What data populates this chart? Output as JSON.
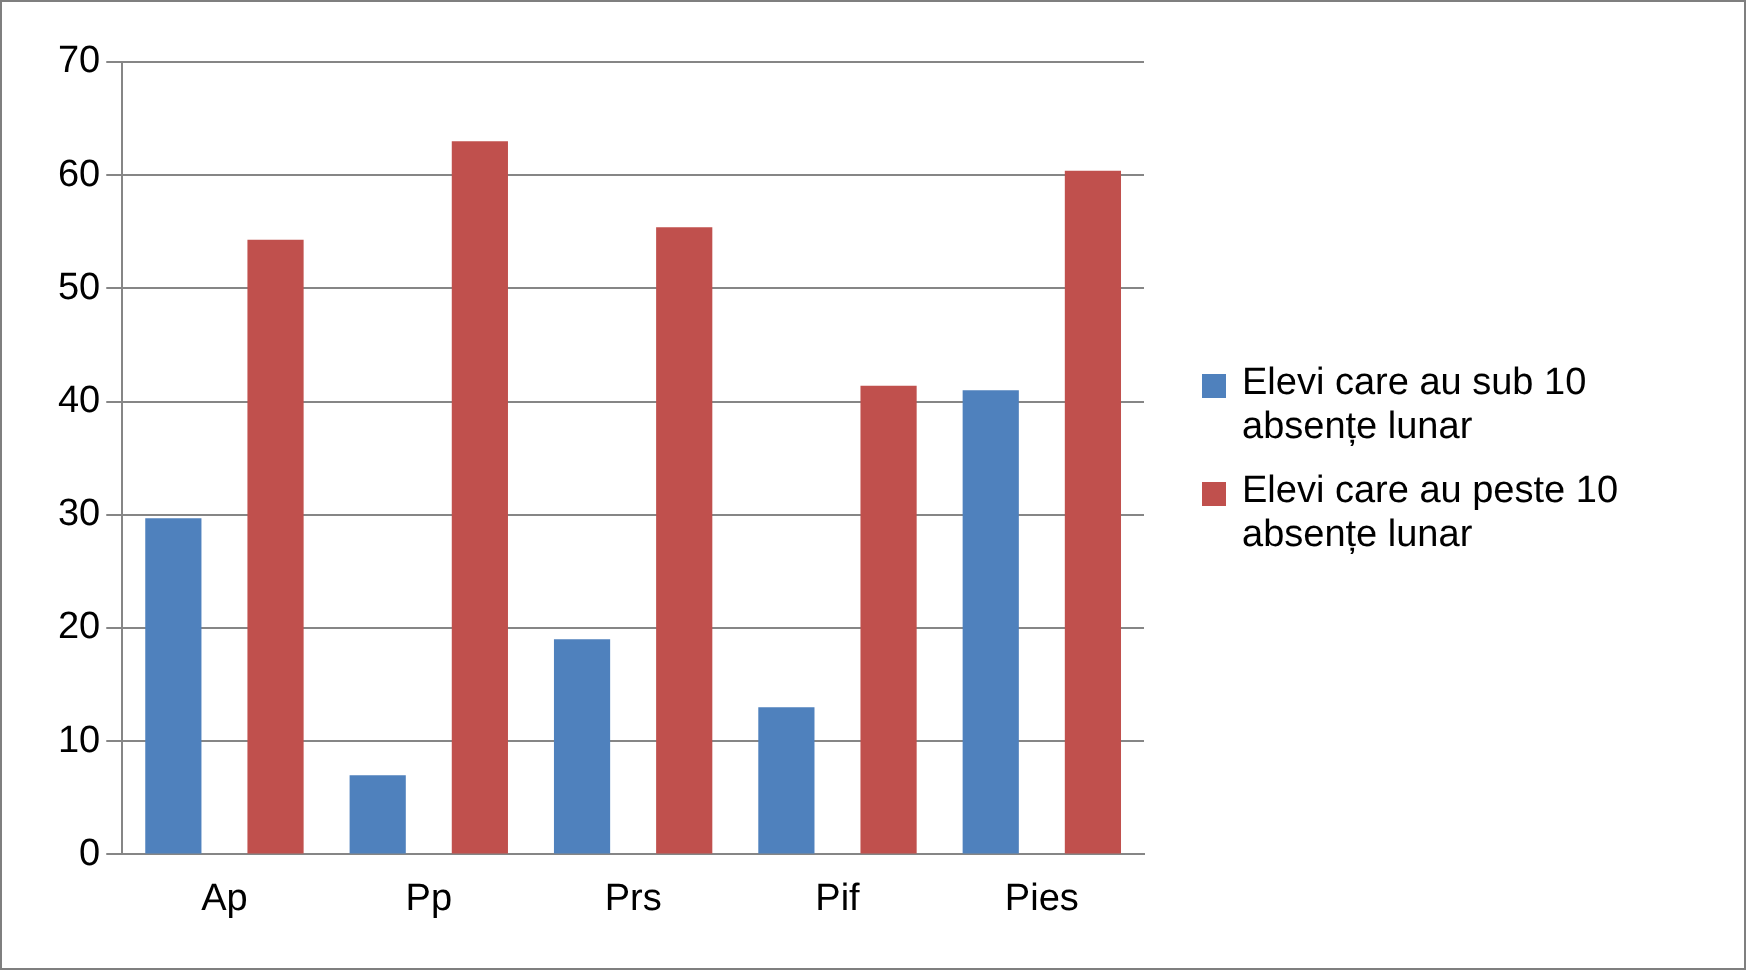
{
  "chart_data": {
    "type": "bar",
    "categories": [
      "Ap",
      "Pp",
      "Prs",
      "Pif",
      "Pies"
    ],
    "series": [
      {
        "name": "Elevi care au sub 10 absențe lunar",
        "color": "#4f81bd",
        "values": [
          29.7,
          7,
          19,
          13,
          41
        ]
      },
      {
        "name": "Elevi care au peste 10 absențe lunar",
        "color": "#c0504d",
        "values": [
          54.3,
          63,
          55.4,
          41.4,
          60.4
        ]
      }
    ],
    "ylim": [
      0,
      70
    ],
    "yticks": [
      0,
      10,
      20,
      30,
      40,
      50,
      60,
      70
    ],
    "grid": "y",
    "legend": "right"
  }
}
